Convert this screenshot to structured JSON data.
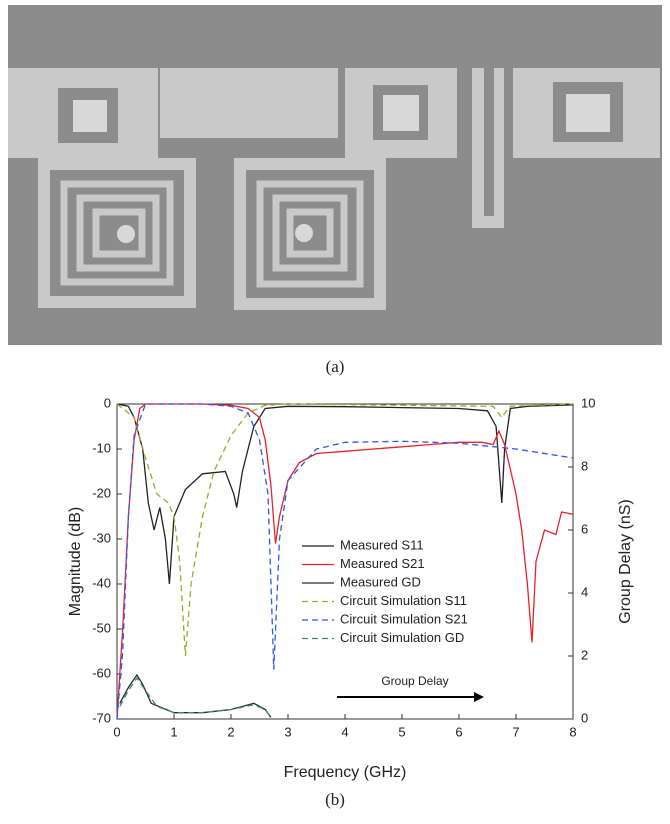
{
  "captions": [
    "(a)",
    "(b)"
  ],
  "chart_data": {
    "type": "line",
    "xlabel": "Frequency (GHz)",
    "ylabel": "Magnitude (dB)",
    "y2label": "Group Delay (nS)",
    "xlim": [
      0,
      8
    ],
    "xticks": [
      0,
      1,
      2,
      3,
      4,
      5,
      6,
      7,
      8
    ],
    "ylim": [
      -70,
      0
    ],
    "yticks": [
      0,
      -10,
      -20,
      -30,
      -40,
      -50,
      -60,
      -70
    ],
    "y2lim": [
      0,
      10
    ],
    "y2ticks": [
      0,
      2,
      4,
      6,
      8,
      10
    ],
    "annotation": "Group Delay",
    "series": [
      {
        "name": "Measured S11",
        "color": "#222222",
        "linestyle": "solid",
        "x": [
          0,
          0.2,
          0.3,
          0.45,
          0.55,
          0.65,
          0.75,
          0.85,
          0.92,
          1.0,
          1.2,
          1.5,
          1.9,
          2.05,
          2.1,
          2.2,
          2.4,
          2.6,
          3,
          4,
          5,
          6,
          6.5,
          6.65,
          6.75,
          6.8,
          6.9,
          7.2,
          8
        ],
        "values": [
          0,
          -0.5,
          -3,
          -10,
          -22,
          -28,
          -23,
          -30,
          -40,
          -25,
          -19,
          -15.5,
          -15,
          -20,
          -23,
          -15,
          -5,
          -1,
          -0.5,
          -0.6,
          -0.8,
          -1,
          -1.5,
          -5,
          -22,
          -10,
          -1,
          -0.5,
          -0.2
        ]
      },
      {
        "name": "Measured S21",
        "color": "#e8222a",
        "linestyle": "solid",
        "x": [
          0,
          0.05,
          0.1,
          0.2,
          0.3,
          0.4,
          0.5,
          1,
          1.5,
          2,
          2.3,
          2.5,
          2.6,
          2.7,
          2.78,
          2.85,
          3,
          3.2,
          3.5,
          4,
          4.5,
          5,
          5.5,
          6,
          6.4,
          6.6,
          6.7,
          6.8,
          7,
          7.1,
          7.2,
          7.28,
          7.35,
          7.5,
          7.7,
          7.8,
          8
        ],
        "values": [
          -70,
          -60,
          -50,
          -25,
          -8,
          -1,
          0,
          0,
          0,
          -0.3,
          -1,
          -3,
          -8,
          -18,
          -31,
          -25,
          -17,
          -13,
          -11,
          -10.5,
          -10,
          -9.5,
          -9,
          -8.5,
          -8.5,
          -9,
          -6,
          -9,
          -20,
          -28,
          -40,
          -53,
          -35,
          -28,
          -29,
          -24,
          -24.5
        ]
      },
      {
        "name": "Measured GD",
        "color": "#2a2a2a",
        "linestyle": "solid",
        "axis": "y2",
        "x": [
          0.05,
          0.2,
          0.35,
          0.45,
          0.6,
          1,
          1.5,
          2,
          2.4,
          2.6,
          2.7
        ],
        "values": [
          0.5,
          1.0,
          1.4,
          1.1,
          0.5,
          0.2,
          0.2,
          0.3,
          0.5,
          0.3,
          0.05
        ]
      },
      {
        "name": "Circuit Simulation S11",
        "color": "#9aaa2a",
        "linestyle": "dashed",
        "x": [
          0,
          0.3,
          0.5,
          0.7,
          0.9,
          1.0,
          1.1,
          1.2,
          1.3,
          1.5,
          1.7,
          2,
          2.3,
          2.6,
          3,
          6.6,
          6.75,
          6.9,
          8
        ],
        "values": [
          0,
          -3,
          -12,
          -20,
          -22,
          -25,
          -35,
          -56,
          -40,
          -25,
          -15,
          -7,
          -2,
          -0.3,
          0,
          -0.5,
          -3,
          -0.5,
          0
        ]
      },
      {
        "name": "Circuit Simulation S21",
        "color": "#3355ee",
        "linestyle": "dashed",
        "x": [
          0,
          0.1,
          0.2,
          0.3,
          0.5,
          1.5,
          2,
          2.3,
          2.5,
          2.65,
          2.75,
          2.85,
          3,
          3.5,
          4,
          5,
          6,
          7,
          8
        ],
        "values": [
          -70,
          -55,
          -25,
          -7,
          0,
          0,
          -0.5,
          -2,
          -8,
          -20,
          -59,
          -30,
          -17,
          -10,
          -8.5,
          -8.3,
          -8.7,
          -10,
          -12
        ]
      },
      {
        "name": "Circuit Simulation GD",
        "color": "#3a8a7a",
        "linestyle": "dashed",
        "axis": "y2",
        "x": [
          0.05,
          0.2,
          0.35,
          0.5,
          0.7,
          1,
          1.5,
          2,
          2.4,
          2.6,
          2.7
        ],
        "values": [
          0.4,
          0.9,
          1.3,
          0.9,
          0.4,
          0.2,
          0.2,
          0.3,
          0.45,
          0.3,
          0.05
        ]
      }
    ]
  }
}
